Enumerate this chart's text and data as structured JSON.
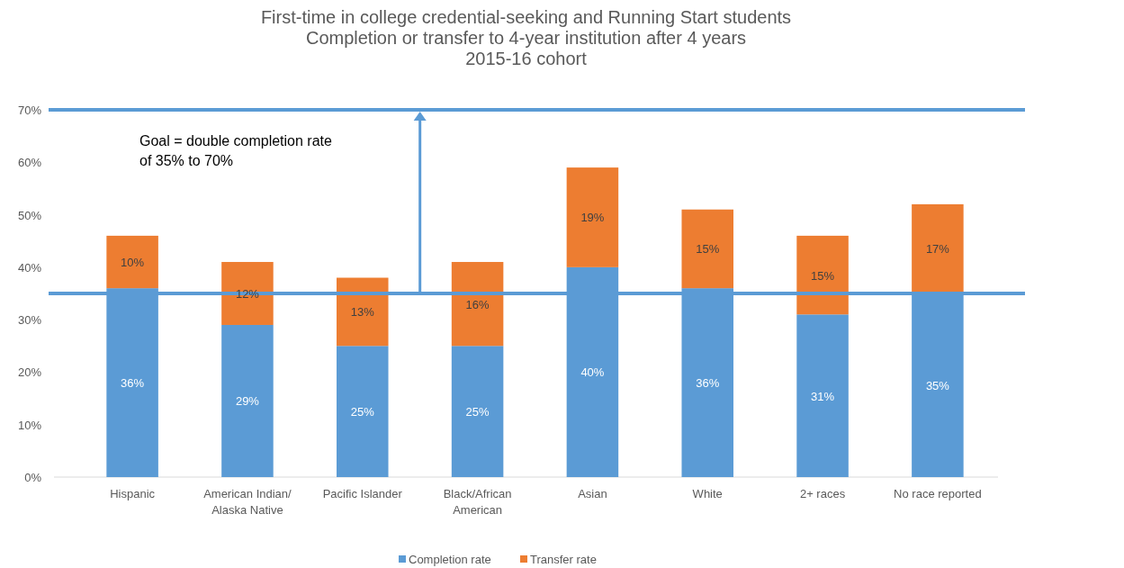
{
  "chart_data": {
    "type": "bar",
    "title": "First-time in college credential-seeking and Running Start students\nCompletion or transfer to 4-year institution after 4 years\n2015-16 cohort",
    "categories": [
      "Hispanic",
      "American Indian/Alaska Native",
      "Pacific Islander",
      "Black/African American",
      "Asian",
      "White",
      "2+ races",
      "No race reported"
    ],
    "stacked": true,
    "series": [
      {
        "name": "Completion rate",
        "color": "#5b9bd5",
        "values": [
          36,
          29,
          25,
          25,
          40,
          36,
          31,
          35
        ],
        "value_labels": [
          "36%",
          "29%",
          "25%",
          "25%",
          "40%",
          "36%",
          "31%",
          "35%"
        ]
      },
      {
        "name": "Transfer rate",
        "color": "#ed7d31",
        "values": [
          10,
          12,
          13,
          16,
          19,
          15,
          15,
          17
        ],
        "value_labels": [
          "10%",
          "12%",
          "13%",
          "16%",
          "19%",
          "15%",
          "15%",
          "17%"
        ]
      }
    ],
    "ylim": [
      0,
      70
    ],
    "yticks": [
      {
        "value": 0,
        "label": "0%"
      },
      {
        "value": 10,
        "label": "10%"
      },
      {
        "value": 20,
        "label": "20%"
      },
      {
        "value": 30,
        "label": "30%"
      },
      {
        "value": 40,
        "label": "40%"
      },
      {
        "value": 50,
        "label": "50%"
      },
      {
        "value": 60,
        "label": "60%"
      },
      {
        "value": 70,
        "label": "70%"
      }
    ],
    "grid": false,
    "legend": "bottom",
    "ref_lines": [
      {
        "axis": "y",
        "value": 70,
        "color": "#5b9bd5"
      },
      {
        "axis": "y",
        "value": 35,
        "color": "#5b9bd5"
      }
    ],
    "annotations": [
      "Goal = double completion rate\nof 35% to 70%"
    ]
  }
}
